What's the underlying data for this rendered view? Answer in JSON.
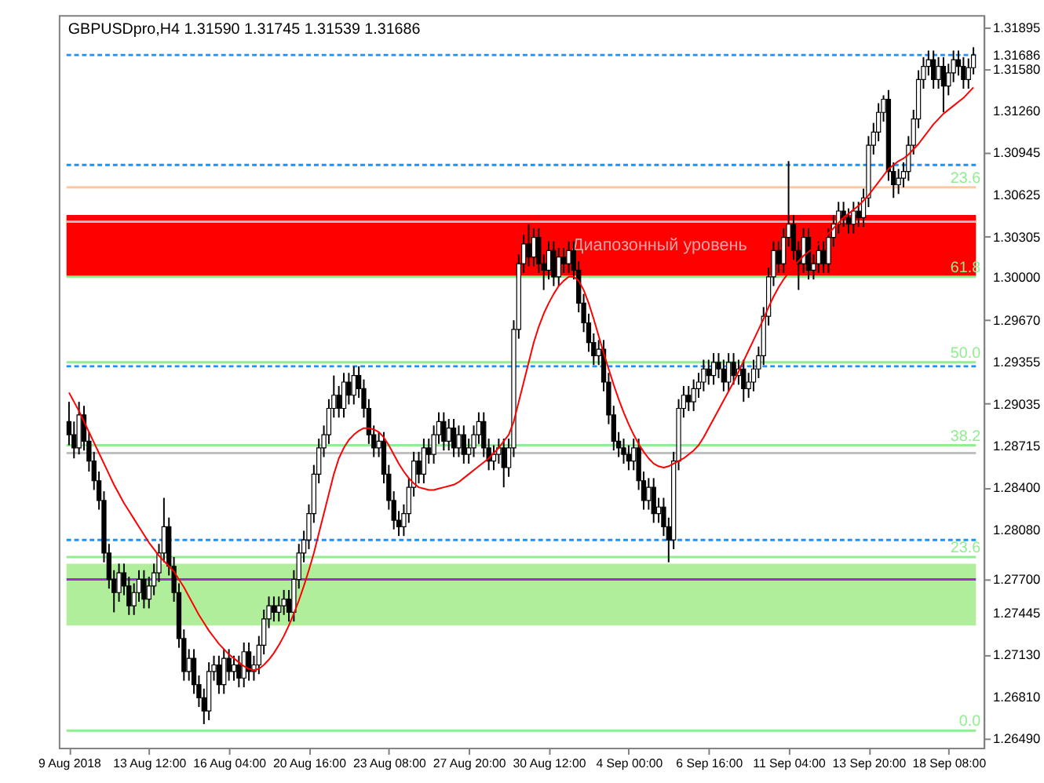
{
  "chart_data": {
    "type": "candlestick",
    "title": "GBPUSDpro,H4  1.31590 1.31745 1.31539 1.31686",
    "categories": [
      "9 Aug 2018",
      null,
      null,
      null,
      null,
      null,
      null,
      null,
      null,
      null,
      null,
      null,
      null,
      null,
      null,
      null,
      "13 Aug 12:00",
      null,
      null,
      null,
      null,
      null,
      null,
      null,
      null,
      null,
      null,
      null,
      null,
      null,
      null,
      null,
      "16 Aug 04:00",
      null,
      null,
      null,
      null,
      null,
      null,
      null,
      null,
      null,
      null,
      null,
      null,
      null,
      null,
      null,
      "20 Aug 16:00",
      null,
      null,
      null,
      null,
      null,
      null,
      null,
      null,
      null,
      null,
      null,
      null,
      null,
      null,
      null,
      "23 Aug 08:00",
      null,
      null,
      null,
      null,
      null,
      null,
      null,
      null,
      null,
      null,
      null,
      null,
      null,
      null,
      null,
      "27 Aug 20:00",
      null,
      null,
      null,
      null,
      null,
      null,
      null,
      null,
      null,
      null,
      null,
      null,
      null,
      null,
      null,
      "30 Aug 12:00",
      null,
      null,
      null,
      null,
      null,
      null,
      null,
      null,
      null,
      null,
      null,
      null,
      null,
      null,
      null,
      "4 Sep 00:00",
      null,
      null,
      null,
      null,
      null,
      null,
      null,
      null,
      null,
      null,
      null,
      null,
      null,
      null,
      null,
      "6 Sep 16:00",
      null,
      null,
      null,
      null,
      null,
      null,
      null,
      null,
      null,
      null,
      null,
      null,
      null,
      null,
      null,
      "11 Sep 04:00",
      null,
      null,
      null,
      null,
      null,
      null,
      null,
      null,
      null,
      null,
      null,
      null,
      null,
      null,
      null,
      "13 Sep 20:00",
      null,
      null,
      null,
      null,
      null,
      null,
      null,
      null,
      null,
      null,
      null,
      null,
      null,
      null,
      null,
      "18 Sep 08:00",
      null,
      null,
      null,
      null,
      null
    ],
    "ohlc": [
      [
        1.289,
        1.2905,
        1.2872,
        1.288
      ],
      [
        1.288,
        1.289,
        1.2862,
        1.287
      ],
      [
        1.287,
        1.2905,
        1.2865,
        1.2895
      ],
      [
        1.2895,
        1.2902,
        1.2868,
        1.2875
      ],
      [
        1.2875,
        1.2882,
        1.2852,
        1.286
      ],
      [
        1.286,
        1.2867,
        1.2838,
        1.2845
      ],
      [
        1.2845,
        1.2852,
        1.2823,
        1.283
      ],
      [
        1.283,
        1.2837,
        1.2783,
        1.279
      ],
      [
        1.279,
        1.2797,
        1.2763,
        1.277
      ],
      [
        1.277,
        1.2777,
        1.2745,
        1.276
      ],
      [
        1.276,
        1.2782,
        1.2753,
        1.2775
      ],
      [
        1.2775,
        1.2782,
        1.2758,
        1.2765
      ],
      [
        1.2765,
        1.2772,
        1.2743,
        1.275
      ],
      [
        1.275,
        1.2767,
        1.2743,
        1.276
      ],
      [
        1.276,
        1.2777,
        1.2753,
        1.277
      ],
      [
        1.277,
        1.2777,
        1.2748,
        1.2755
      ],
      [
        1.2755,
        1.2772,
        1.2748,
        1.2765
      ],
      [
        1.2765,
        1.2782,
        1.2758,
        1.2775
      ],
      [
        1.2775,
        1.2797,
        1.2768,
        1.279
      ],
      [
        1.279,
        1.2832,
        1.2783,
        1.281
      ],
      [
        1.281,
        1.2817,
        1.2773,
        1.278
      ],
      [
        1.278,
        1.2787,
        1.2753,
        1.276
      ],
      [
        1.276,
        1.2767,
        1.2718,
        1.2725
      ],
      [
        1.2725,
        1.2732,
        1.2693,
        1.27
      ],
      [
        1.27,
        1.2717,
        1.2693,
        1.271
      ],
      [
        1.271,
        1.2717,
        1.2683,
        1.269
      ],
      [
        1.269,
        1.2697,
        1.2673,
        1.268
      ],
      [
        1.268,
        1.2687,
        1.266,
        1.267
      ],
      [
        1.267,
        1.2707,
        1.2663,
        1.27
      ],
      [
        1.27,
        1.2712,
        1.2693,
        1.2705
      ],
      [
        1.2705,
        1.2712,
        1.2683,
        1.269
      ],
      [
        1.269,
        1.2717,
        1.2683,
        1.271
      ],
      [
        1.271,
        1.2717,
        1.2693,
        1.27
      ],
      [
        1.27,
        1.2712,
        1.2693,
        1.2705
      ],
      [
        1.2705,
        1.2712,
        1.2688,
        1.2695
      ],
      [
        1.2695,
        1.2722,
        1.2688,
        1.2715
      ],
      [
        1.2715,
        1.2722,
        1.2693,
        1.27
      ],
      [
        1.27,
        1.2712,
        1.2693,
        1.2705
      ],
      [
        1.2705,
        1.2727,
        1.2698,
        1.272
      ],
      [
        1.272,
        1.2747,
        1.2713,
        1.274
      ],
      [
        1.274,
        1.2757,
        1.2733,
        1.275
      ],
      [
        1.275,
        1.2757,
        1.2738,
        1.2745
      ],
      [
        1.2745,
        1.2757,
        1.2738,
        1.275
      ],
      [
        1.275,
        1.2762,
        1.2743,
        1.2755
      ],
      [
        1.2755,
        1.2762,
        1.2738,
        1.2745
      ],
      [
        1.2745,
        1.2777,
        1.2738,
        1.277
      ],
      [
        1.277,
        1.2797,
        1.2763,
        1.279
      ],
      [
        1.279,
        1.2807,
        1.2783,
        1.28
      ],
      [
        1.28,
        1.2827,
        1.2793,
        1.282
      ],
      [
        1.282,
        1.2857,
        1.2813,
        1.285
      ],
      [
        1.285,
        1.2877,
        1.2843,
        1.287
      ],
      [
        1.287,
        1.2887,
        1.2863,
        1.288
      ],
      [
        1.288,
        1.2907,
        1.2873,
        1.29
      ],
      [
        1.29,
        1.2925,
        1.2893,
        1.291
      ],
      [
        1.291,
        1.2917,
        1.2893,
        1.29
      ],
      [
        1.29,
        1.2927,
        1.2893,
        1.292
      ],
      [
        1.292,
        1.2927,
        1.2903,
        1.291
      ],
      [
        1.291,
        1.2932,
        1.2903,
        1.2925
      ],
      [
        1.2925,
        1.2932,
        1.2908,
        1.2915
      ],
      [
        1.2915,
        1.2922,
        1.2893,
        1.29
      ],
      [
        1.29,
        1.2907,
        1.2873,
        1.288
      ],
      [
        1.288,
        1.2887,
        1.2863,
        1.287
      ],
      [
        1.287,
        1.2882,
        1.2863,
        1.2875
      ],
      [
        1.2875,
        1.2882,
        1.2843,
        1.285
      ],
      [
        1.285,
        1.2857,
        1.2823,
        1.283
      ],
      [
        1.283,
        1.2837,
        1.2808,
        1.2815
      ],
      [
        1.2815,
        1.2822,
        1.2803,
        1.281
      ],
      [
        1.281,
        1.2827,
        1.2803,
        1.282
      ],
      [
        1.282,
        1.2847,
        1.2813,
        1.284
      ],
      [
        1.284,
        1.2867,
        1.2833,
        1.286
      ],
      [
        1.286,
        1.2867,
        1.2843,
        1.285
      ],
      [
        1.285,
        1.2877,
        1.2843,
        1.287
      ],
      [
        1.287,
        1.2877,
        1.2858,
        1.2865
      ],
      [
        1.2865,
        1.2887,
        1.2858,
        1.288
      ],
      [
        1.288,
        1.2897,
        1.2873,
        1.289
      ],
      [
        1.289,
        1.2897,
        1.2868,
        1.2875
      ],
      [
        1.2875,
        1.2892,
        1.2868,
        1.2885
      ],
      [
        1.2885,
        1.2892,
        1.2863,
        1.287
      ],
      [
        1.287,
        1.2887,
        1.2863,
        1.288
      ],
      [
        1.288,
        1.2887,
        1.2858,
        1.2865
      ],
      [
        1.2865,
        1.2877,
        1.2858,
        1.287
      ],
      [
        1.287,
        1.2887,
        1.2863,
        1.288
      ],
      [
        1.288,
        1.2897,
        1.2873,
        1.289
      ],
      [
        1.289,
        1.2897,
        1.2863,
        1.287
      ],
      [
        1.287,
        1.2877,
        1.2853,
        1.286
      ],
      [
        1.286,
        1.2872,
        1.2853,
        1.2865
      ],
      [
        1.2865,
        1.2877,
        1.2858,
        1.287
      ],
      [
        1.287,
        1.2877,
        1.284,
        1.2855
      ],
      [
        1.2855,
        1.2877,
        1.2848,
        1.287
      ],
      [
        1.287,
        1.2967,
        1.2863,
        1.296
      ],
      [
        1.296,
        1.3017,
        1.2953,
        1.301
      ],
      [
        1.301,
        1.3032,
        1.3003,
        1.3025
      ],
      [
        1.3025,
        1.304,
        1.3008,
        1.3015
      ],
      [
        1.3015,
        1.3037,
        1.3008,
        1.303
      ],
      [
        1.303,
        1.3037,
        1.3003,
        1.301
      ],
      [
        1.301,
        1.3017,
        1.299,
        1.3005
      ],
      [
        1.3005,
        1.3027,
        1.2998,
        1.302
      ],
      [
        1.302,
        1.3027,
        1.2993,
        1.3
      ],
      [
        1.3,
        1.3022,
        1.2993,
        1.3015
      ],
      [
        1.3015,
        1.3022,
        1.3003,
        1.301
      ],
      [
        1.301,
        1.3027,
        1.3003,
        1.302
      ],
      [
        1.302,
        1.3027,
        1.2998,
        1.3005
      ],
      [
        1.3005,
        1.3012,
        1.2973,
        1.298
      ],
      [
        1.298,
        1.2987,
        1.2958,
        1.2965
      ],
      [
        1.2965,
        1.2972,
        1.2943,
        1.295
      ],
      [
        1.295,
        1.2957,
        1.2933,
        1.294
      ],
      [
        1.294,
        1.2952,
        1.2933,
        1.2945
      ],
      [
        1.2945,
        1.2952,
        1.2913,
        1.292
      ],
      [
        1.292,
        1.2927,
        1.2888,
        1.2895
      ],
      [
        1.2895,
        1.2902,
        1.2868,
        1.2875
      ],
      [
        1.2875,
        1.2882,
        1.2863,
        1.287
      ],
      [
        1.287,
        1.2877,
        1.2858,
        1.2865
      ],
      [
        1.2865,
        1.2872,
        1.2853,
        1.286
      ],
      [
        1.286,
        1.2877,
        1.2853,
        1.287
      ],
      [
        1.287,
        1.2877,
        1.2838,
        1.2845
      ],
      [
        1.2845,
        1.2852,
        1.2823,
        1.283
      ],
      [
        1.283,
        1.2847,
        1.2823,
        1.284
      ],
      [
        1.284,
        1.2847,
        1.2813,
        1.282
      ],
      [
        1.282,
        1.2832,
        1.2813,
        1.2825
      ],
      [
        1.2825,
        1.2832,
        1.2803,
        1.281
      ],
      [
        1.281,
        1.2817,
        1.2783,
        1.28
      ],
      [
        1.28,
        1.2867,
        1.2793,
        1.286
      ],
      [
        1.286,
        1.2907,
        1.2853,
        1.29
      ],
      [
        1.29,
        1.2917,
        1.2893,
        1.291
      ],
      [
        1.291,
        1.2917,
        1.2898,
        1.2905
      ],
      [
        1.2905,
        1.2922,
        1.2898,
        1.2915
      ],
      [
        1.2915,
        1.2927,
        1.2908,
        1.292
      ],
      [
        1.292,
        1.2937,
        1.2913,
        1.293
      ],
      [
        1.293,
        1.2937,
        1.2918,
        1.2925
      ],
      [
        1.2925,
        1.2942,
        1.2918,
        1.2935
      ],
      [
        1.2935,
        1.2942,
        1.2923,
        1.293
      ],
      [
        1.293,
        1.2937,
        1.2913,
        1.292
      ],
      [
        1.292,
        1.2942,
        1.2913,
        1.2935
      ],
      [
        1.2935,
        1.2942,
        1.2918,
        1.2925
      ],
      [
        1.2925,
        1.2937,
        1.2918,
        1.293
      ],
      [
        1.293,
        1.2937,
        1.2905,
        1.2915
      ],
      [
        1.2915,
        1.2927,
        1.2908,
        1.292
      ],
      [
        1.292,
        1.2937,
        1.2913,
        1.293
      ],
      [
        1.293,
        1.2947,
        1.2923,
        1.294
      ],
      [
        1.294,
        1.2977,
        1.2933,
        1.297
      ],
      [
        1.297,
        1.3007,
        1.2963,
        1.3
      ],
      [
        1.3,
        1.3027,
        1.2993,
        1.302
      ],
      [
        1.302,
        1.3027,
        1.3003,
        1.301
      ],
      [
        1.301,
        1.3037,
        1.3003,
        1.303
      ],
      [
        1.303,
        1.3088,
        1.3023,
        1.304
      ],
      [
        1.304,
        1.3047,
        1.3013,
        1.302
      ],
      [
        1.302,
        1.3027,
        1.299,
        1.301
      ],
      [
        1.301,
        1.3037,
        1.3003,
        1.303
      ],
      [
        1.303,
        1.3037,
        1.2998,
        1.3005
      ],
      [
        1.3005,
        1.3017,
        1.2998,
        1.301
      ],
      [
        1.301,
        1.3027,
        1.3003,
        1.302
      ],
      [
        1.302,
        1.3027,
        1.3003,
        1.301
      ],
      [
        1.301,
        1.3037,
        1.3003,
        1.303
      ],
      [
        1.303,
        1.3047,
        1.3023,
        1.304
      ],
      [
        1.304,
        1.3057,
        1.3033,
        1.305
      ],
      [
        1.305,
        1.3057,
        1.3038,
        1.3045
      ],
      [
        1.3045,
        1.3052,
        1.3033,
        1.304
      ],
      [
        1.304,
        1.3057,
        1.3033,
        1.305
      ],
      [
        1.305,
        1.3057,
        1.3038,
        1.3045
      ],
      [
        1.3045,
        1.3067,
        1.3038,
        1.306
      ],
      [
        1.306,
        1.3107,
        1.3053,
        1.31
      ],
      [
        1.31,
        1.3117,
        1.3093,
        1.311
      ],
      [
        1.311,
        1.3132,
        1.3103,
        1.3125
      ],
      [
        1.3125,
        1.3138,
        1.3118,
        1.3135
      ],
      [
        1.3135,
        1.3142,
        1.3073,
        1.308
      ],
      [
        1.308,
        1.3087,
        1.306,
        1.307
      ],
      [
        1.307,
        1.3082,
        1.3063,
        1.3075
      ],
      [
        1.3075,
        1.3087,
        1.3068,
        1.308
      ],
      [
        1.308,
        1.3107,
        1.3073,
        1.31
      ],
      [
        1.31,
        1.3127,
        1.3093,
        1.312
      ],
      [
        1.312,
        1.3157,
        1.3113,
        1.315
      ],
      [
        1.315,
        1.3167,
        1.3143,
        1.316
      ],
      [
        1.316,
        1.3172,
        1.3153,
        1.3165
      ],
      [
        1.3165,
        1.3172,
        1.3143,
        1.315
      ],
      [
        1.315,
        1.3167,
        1.3143,
        1.316
      ],
      [
        1.316,
        1.3167,
        1.3125,
        1.3145
      ],
      [
        1.3145,
        1.3162,
        1.3138,
        1.3155
      ],
      [
        1.3155,
        1.3172,
        1.3148,
        1.3165
      ],
      [
        1.3165,
        1.3172,
        1.3153,
        1.316
      ],
      [
        1.316,
        1.3167,
        1.3143,
        1.315
      ],
      [
        1.315,
        1.3166,
        1.3143,
        1.3159
      ],
      [
        1.3159,
        1.31745,
        1.31539,
        1.31686
      ]
    ],
    "series": [
      {
        "type": "line",
        "color": "#ff0000",
        "values": [
          1.2912,
          1.2905,
          1.2898,
          1.289,
          1.2882,
          1.2874,
          1.2866,
          1.2858,
          1.285,
          1.2842,
          1.2835,
          1.2828,
          1.2822,
          1.2816,
          1.281,
          1.2804,
          1.2798,
          1.2793,
          1.2788,
          1.2784,
          1.278,
          1.2776,
          1.277,
          1.2764,
          1.2757,
          1.275,
          1.2743,
          1.2737,
          1.2731,
          1.2726,
          1.2721,
          1.2717,
          1.2713,
          1.271,
          1.2707,
          1.2704,
          1.2702,
          1.2701,
          1.2702,
          1.2705,
          1.2709,
          1.2714,
          1.272,
          1.2727,
          1.2735,
          1.2744,
          1.2754,
          1.2765,
          1.2777,
          1.279,
          1.2805,
          1.282,
          1.2835,
          1.285,
          1.2862,
          1.287,
          1.2876,
          1.288,
          1.2883,
          1.2885,
          1.2885,
          1.2884,
          1.2882,
          1.2878,
          1.2872,
          1.2865,
          1.2858,
          1.2852,
          1.2847,
          1.2843,
          1.284,
          1.2839,
          1.2838,
          1.2838,
          1.2839,
          1.284,
          1.2841,
          1.2842,
          1.2844,
          1.2847,
          1.285,
          1.2853,
          1.2856,
          1.2859,
          1.2862,
          1.2866,
          1.287,
          1.2875,
          1.288,
          1.289,
          1.2905,
          1.292,
          1.2935,
          1.295,
          1.2962,
          1.2972,
          1.298,
          1.2987,
          1.2993,
          1.2997,
          1.3,
          1.3,
          1.2997,
          1.299,
          1.298,
          1.2968,
          1.2955,
          1.2942,
          1.293,
          1.2918,
          1.2907,
          1.2897,
          1.2888,
          1.288,
          1.2873,
          1.2867,
          1.2862,
          1.2858,
          1.2856,
          1.2855,
          1.2856,
          1.2858,
          1.286,
          1.2862,
          1.2865,
          1.2868,
          1.2872,
          1.2878,
          1.2885,
          1.2892,
          1.2899,
          1.2906,
          1.2913,
          1.292,
          1.2928,
          1.2936,
          1.2944,
          1.2952,
          1.296,
          1.2968,
          1.2977,
          1.2985,
          1.2992,
          1.2998,
          1.3003,
          1.3008,
          1.3012,
          1.3016,
          1.3019,
          1.3022,
          1.3025,
          1.3029,
          1.3033,
          1.3037,
          1.3041,
          1.3045,
          1.3048,
          1.3051,
          1.3054,
          1.3058,
          1.3062,
          1.3067,
          1.3072,
          1.3077,
          1.3082,
          1.3085,
          1.3088,
          1.309,
          1.3093,
          1.3097,
          1.3101,
          1.3106,
          1.3111,
          1.3116,
          1.312,
          1.3124,
          1.3127,
          1.313,
          1.3133,
          1.3136,
          1.314,
          1.3144
        ]
      }
    ],
    "ylim": [
      1.2642,
      1.3199
    ],
    "yticks": [
      {
        "value": 1.31895,
        "label": "1.31895"
      },
      {
        "value": 1.31686,
        "label": "1.31686"
      },
      {
        "value": 1.3158,
        "label": "1.31580"
      },
      {
        "value": 1.3126,
        "label": "1.31260"
      },
      {
        "value": 1.30945,
        "label": "1.30945"
      },
      {
        "value": 1.30625,
        "label": "1.30625"
      },
      {
        "value": 1.30305,
        "label": "1.30305"
      },
      {
        "value": 1.3,
        "label": "1.30000"
      },
      {
        "value": 1.2967,
        "label": "1.29670"
      },
      {
        "value": 1.29355,
        "label": "1.29355"
      },
      {
        "value": 1.29035,
        "label": "1.29035"
      },
      {
        "value": 1.28715,
        "label": "1.28715"
      },
      {
        "value": 1.284,
        "label": "1.28400"
      },
      {
        "value": 1.2808,
        "label": "1.28080"
      },
      {
        "value": 1.277,
        "label": "1.27700"
      },
      {
        "value": 1.27445,
        "label": "1.27445"
      },
      {
        "value": 1.2713,
        "label": "1.27130"
      },
      {
        "value": 1.2681,
        "label": "1.26810"
      },
      {
        "value": 1.2649,
        "label": "1.26490"
      }
    ],
    "bands": [
      {
        "axis": "y",
        "from": 1.3,
        "to": 1.3047,
        "label": "Диапозонный уровень",
        "color": "#ff0000"
      },
      {
        "axis": "y",
        "from": 1.2735,
        "to": 1.2782,
        "color": "#b0ee9c"
      }
    ],
    "ref_lines": [
      {
        "axis": "y",
        "value": 1.31686,
        "color": "#1e90ff",
        "line_style": "dashed"
      },
      {
        "axis": "y",
        "value": 1.3085,
        "color": "#1e90ff",
        "line_style": "dashed"
      },
      {
        "axis": "y",
        "value": 1.3068,
        "color": "#ffc8a0"
      },
      {
        "axis": "y",
        "value": 1.3042,
        "color": "#c0c0c0"
      },
      {
        "axis": "y",
        "value": 1.3,
        "color": "#90ee90"
      },
      {
        "axis": "y",
        "value": 1.2935,
        "color": "#90ee90"
      },
      {
        "axis": "y",
        "value": 1.2932,
        "color": "#1e90ff",
        "line_style": "dashed"
      },
      {
        "axis": "y",
        "value": 1.2872,
        "color": "#90ee90"
      },
      {
        "axis": "y",
        "value": 1.2866,
        "color": "#c0c0c0"
      },
      {
        "axis": "y",
        "value": 1.28,
        "color": "#1e90ff",
        "line_style": "dashed"
      },
      {
        "axis": "y",
        "value": 1.2787,
        "color": "#90ee90"
      },
      {
        "axis": "y",
        "value": 1.277,
        "color": "#9932cc"
      },
      {
        "axis": "y",
        "value": 1.2655,
        "color": "#90ee90"
      }
    ],
    "annotations": [
      {
        "text": "23.6",
        "y": 1.3068
      },
      {
        "text": "61.8",
        "y": 1.3
      },
      {
        "text": "50.0",
        "y": 1.2935
      },
      {
        "text": "38.2",
        "y": 1.2872
      },
      {
        "text": "23.6",
        "y": 1.2787
      },
      {
        "text": "0.0",
        "y": 1.2655
      }
    ]
  }
}
